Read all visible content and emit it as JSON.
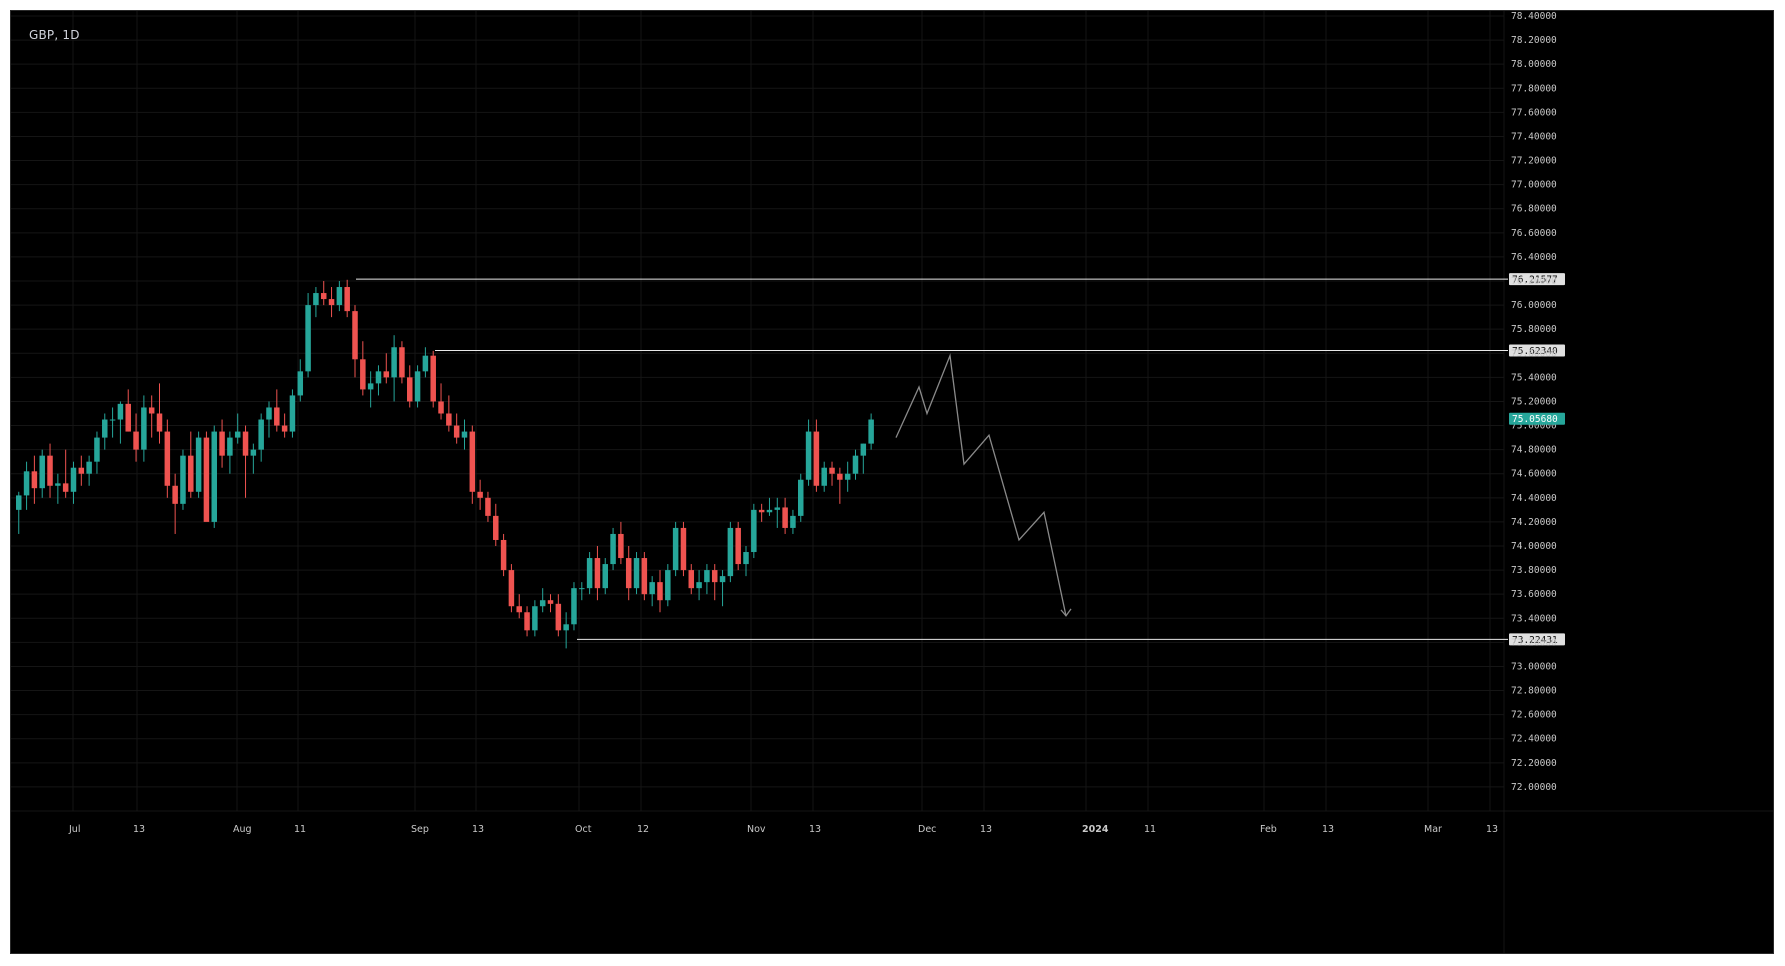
{
  "header": {
    "symbol": "GBP, 1D"
  },
  "chart_data": {
    "type": "candlestick",
    "symbol": "GBP",
    "interval": "1D",
    "ylim": [
      71.8,
      78.4
    ],
    "price_ticks": [
      "78.40000",
      "78.20000",
      "78.00000",
      "77.80000",
      "77.60000",
      "77.40000",
      "77.20000",
      "77.00000",
      "76.80000",
      "76.60000",
      "76.40000",
      "76.20000",
      "76.00000",
      "75.80000",
      "75.60000",
      "75.40000",
      "75.20000",
      "75.00000",
      "74.80000",
      "74.60000",
      "74.40000",
      "74.20000",
      "74.00000",
      "73.80000",
      "73.60000",
      "73.40000",
      "73.20000",
      "73.00000",
      "72.80000",
      "72.60000",
      "72.40000",
      "72.20000",
      "72.00000"
    ],
    "time_labels": [
      "Jul",
      "13",
      "Aug",
      "11",
      "Sep",
      "13",
      "Oct",
      "12",
      "Nov",
      "13",
      "Dec",
      "13",
      "2024",
      "11",
      "Feb",
      "13",
      "Mar",
      "13"
    ],
    "horizontal_levels": [
      {
        "price": 76.21577,
        "label": "76.21577"
      },
      {
        "price": 75.6234,
        "label": "75.62340"
      },
      {
        "price": 73.22431,
        "label": "73.22431"
      }
    ],
    "last_price": {
      "price": 75.0568,
      "label": "75.05680",
      "color": "#26a69a"
    },
    "colors": {
      "up": "#26a69a",
      "down": "#ef5350",
      "background": "#000000",
      "level_line": "#e8e8e8",
      "projection": "#8a8a8a"
    },
    "candles": [
      [
        74.3,
        74.45,
        74.1,
        74.42
      ],
      [
        74.42,
        74.7,
        74.3,
        74.62
      ],
      [
        74.62,
        74.75,
        74.35,
        74.48
      ],
      [
        74.48,
        74.8,
        74.4,
        74.75
      ],
      [
        74.75,
        74.85,
        74.4,
        74.5
      ],
      [
        74.5,
        74.6,
        74.35,
        74.52
      ],
      [
        74.52,
        74.8,
        74.4,
        74.45
      ],
      [
        74.45,
        74.7,
        74.35,
        74.65
      ],
      [
        74.65,
        74.75,
        74.5,
        74.6
      ],
      [
        74.6,
        74.75,
        74.5,
        74.7
      ],
      [
        74.7,
        74.95,
        74.6,
        74.9
      ],
      [
        74.9,
        75.1,
        74.8,
        75.05
      ],
      [
        75.05,
        75.15,
        74.9,
        75.05
      ],
      [
        75.05,
        75.2,
        74.85,
        75.18
      ],
      [
        75.18,
        75.3,
        74.95,
        74.95
      ],
      [
        74.95,
        75.1,
        74.7,
        74.8
      ],
      [
        74.8,
        75.25,
        74.7,
        75.15
      ],
      [
        75.15,
        75.25,
        74.9,
        75.1
      ],
      [
        75.1,
        75.35,
        74.85,
        74.95
      ],
      [
        74.95,
        75.05,
        74.4,
        74.5
      ],
      [
        74.5,
        74.6,
        74.1,
        74.35
      ],
      [
        74.35,
        74.8,
        74.3,
        74.75
      ],
      [
        74.75,
        74.95,
        74.4,
        74.45
      ],
      [
        74.45,
        74.95,
        74.4,
        74.9
      ],
      [
        74.9,
        74.95,
        74.25,
        74.2
      ],
      [
        74.2,
        75.0,
        74.15,
        74.95
      ],
      [
        74.95,
        75.05,
        74.65,
        74.75
      ],
      [
        74.75,
        74.95,
        74.6,
        74.9
      ],
      [
        74.9,
        75.1,
        74.85,
        74.95
      ],
      [
        74.95,
        75.0,
        74.4,
        74.75
      ],
      [
        74.75,
        74.85,
        74.6,
        74.8
      ],
      [
        74.8,
        75.1,
        74.7,
        75.05
      ],
      [
        75.05,
        75.2,
        74.9,
        75.15
      ],
      [
        75.15,
        75.3,
        74.95,
        75.0
      ],
      [
        75.0,
        75.1,
        74.9,
        74.95
      ],
      [
        74.95,
        75.3,
        74.9,
        75.25
      ],
      [
        75.25,
        75.55,
        75.2,
        75.45
      ],
      [
        75.45,
        76.1,
        75.4,
        76.0
      ],
      [
        76.0,
        76.15,
        75.9,
        76.1
      ],
      [
        76.1,
        76.2,
        76.0,
        76.05
      ],
      [
        76.05,
        76.15,
        75.9,
        76.0
      ],
      [
        76.0,
        76.2,
        75.95,
        76.15
      ],
      [
        76.15,
        76.21,
        75.9,
        75.95
      ],
      [
        75.95,
        76.0,
        75.4,
        75.55
      ],
      [
        75.55,
        75.7,
        75.25,
        75.3
      ],
      [
        75.3,
        75.45,
        75.15,
        75.35
      ],
      [
        75.35,
        75.5,
        75.25,
        75.45
      ],
      [
        75.45,
        75.6,
        75.35,
        75.4
      ],
      [
        75.4,
        75.75,
        75.2,
        75.65
      ],
      [
        75.65,
        75.7,
        75.35,
        75.4
      ],
      [
        75.4,
        75.5,
        75.15,
        75.2
      ],
      [
        75.2,
        75.5,
        75.15,
        75.45
      ],
      [
        75.45,
        75.65,
        75.4,
        75.58
      ],
      [
        75.58,
        75.62,
        75.15,
        75.2
      ],
      [
        75.2,
        75.35,
        75.05,
        75.1
      ],
      [
        75.1,
        75.25,
        74.95,
        75.0
      ],
      [
        75.0,
        75.1,
        74.85,
        74.9
      ],
      [
        74.9,
        75.05,
        74.8,
        74.95
      ],
      [
        74.95,
        75.0,
        74.35,
        74.45
      ],
      [
        74.45,
        74.55,
        74.3,
        74.4
      ],
      [
        74.4,
        74.45,
        74.2,
        74.25
      ],
      [
        74.25,
        74.35,
        74.0,
        74.05
      ],
      [
        74.05,
        74.1,
        73.75,
        73.8
      ],
      [
        73.8,
        73.85,
        73.45,
        73.5
      ],
      [
        73.5,
        73.6,
        73.4,
        73.45
      ],
      [
        73.45,
        73.5,
        73.25,
        73.3
      ],
      [
        73.3,
        73.55,
        73.25,
        73.5
      ],
      [
        73.5,
        73.65,
        73.45,
        73.55
      ],
      [
        73.55,
        73.6,
        73.45,
        73.52
      ],
      [
        73.52,
        73.6,
        73.25,
        73.3
      ],
      [
        73.3,
        73.45,
        73.15,
        73.35
      ],
      [
        73.35,
        73.7,
        73.3,
        73.65
      ],
      [
        73.65,
        73.7,
        73.55,
        73.65
      ],
      [
        73.65,
        73.95,
        73.6,
        73.9
      ],
      [
        73.9,
        74.0,
        73.55,
        73.65
      ],
      [
        73.65,
        73.9,
        73.6,
        73.85
      ],
      [
        73.85,
        74.15,
        73.8,
        74.1
      ],
      [
        74.1,
        74.2,
        73.85,
        73.9
      ],
      [
        73.9,
        74.0,
        73.55,
        73.65
      ],
      [
        73.65,
        73.95,
        73.6,
        73.9
      ],
      [
        73.9,
        73.95,
        73.55,
        73.6
      ],
      [
        73.6,
        73.75,
        73.5,
        73.7
      ],
      [
        73.7,
        73.8,
        73.45,
        73.55
      ],
      [
        73.55,
        73.85,
        73.5,
        73.8
      ],
      [
        73.8,
        74.2,
        73.75,
        74.15
      ],
      [
        74.15,
        74.2,
        73.75,
        73.8
      ],
      [
        73.8,
        73.85,
        73.6,
        73.65
      ],
      [
        73.65,
        73.8,
        73.55,
        73.7
      ],
      [
        73.7,
        73.85,
        73.6,
        73.8
      ],
      [
        73.8,
        73.85,
        73.55,
        73.7
      ],
      [
        73.7,
        73.8,
        73.5,
        73.75
      ],
      [
        73.75,
        74.2,
        73.7,
        74.15
      ],
      [
        74.15,
        74.2,
        73.8,
        73.85
      ],
      [
        73.85,
        74.0,
        73.75,
        73.95
      ],
      [
        73.95,
        74.35,
        73.9,
        74.3
      ],
      [
        74.3,
        74.35,
        74.2,
        74.28
      ],
      [
        74.28,
        74.4,
        74.25,
        74.3
      ],
      [
        74.3,
        74.4,
        74.15,
        74.32
      ],
      [
        74.32,
        74.4,
        74.1,
        74.15
      ],
      [
        74.15,
        74.3,
        74.1,
        74.25
      ],
      [
        74.25,
        74.6,
        74.2,
        74.55
      ],
      [
        74.55,
        75.05,
        74.5,
        74.95
      ],
      [
        74.95,
        75.05,
        74.45,
        74.5
      ],
      [
        74.5,
        74.7,
        74.45,
        74.65
      ],
      [
        74.65,
        74.7,
        74.5,
        74.6
      ],
      [
        74.6,
        74.65,
        74.35,
        74.55
      ],
      [
        74.55,
        74.7,
        74.45,
        74.6
      ],
      [
        74.6,
        74.8,
        74.55,
        74.75
      ],
      [
        74.75,
        74.85,
        74.6,
        74.85
      ],
      [
        74.85,
        75.1,
        74.8,
        75.05
      ]
    ],
    "projection_path": [
      [
        74.9
      ],
      [
        75.32
      ],
      [
        75.1
      ],
      [
        75.58
      ],
      [
        74.68
      ],
      [
        74.92
      ],
      [
        74.05
      ],
      [
        74.28
      ],
      [
        73.42
      ]
    ]
  }
}
